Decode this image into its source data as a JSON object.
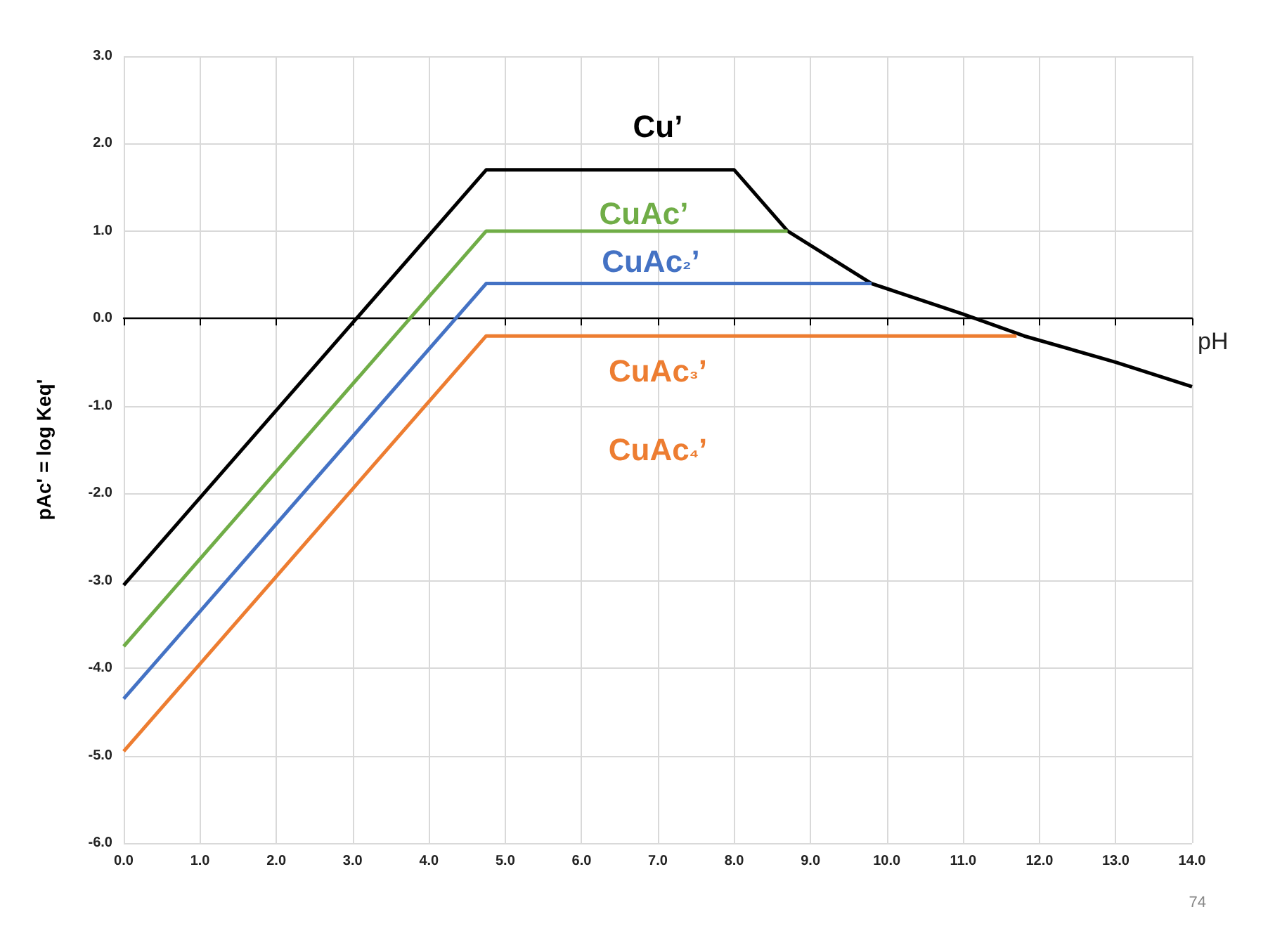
{
  "chart_data": {
    "type": "line",
    "xlabel": "pH",
    "ylabel": "pAc' = log Keq'",
    "xlim": [
      0,
      14
    ],
    "xticks": [
      {
        "value": 0,
        "label": "0.0"
      },
      {
        "value": 1,
        "label": "1.0"
      },
      {
        "value": 2,
        "label": "2.0"
      },
      {
        "value": 3,
        "label": "3.0"
      },
      {
        "value": 4,
        "label": "4.0"
      },
      {
        "value": 5,
        "label": "5.0"
      },
      {
        "value": 6,
        "label": "6.0"
      },
      {
        "value": 7,
        "label": "7.0"
      },
      {
        "value": 8,
        "label": "8.0"
      },
      {
        "value": 9,
        "label": "9.0"
      },
      {
        "value": 10,
        "label": "10.0"
      },
      {
        "value": 11,
        "label": "11.0"
      },
      {
        "value": 12,
        "label": "12.0"
      },
      {
        "value": 13,
        "label": "13.0"
      },
      {
        "value": 14,
        "label": "14.0"
      }
    ],
    "ylim": [
      -6,
      3
    ],
    "yticks": [
      {
        "value": -6,
        "label": "-6.0"
      },
      {
        "value": -5,
        "label": "-5.0"
      },
      {
        "value": -4,
        "label": "-4.0"
      },
      {
        "value": -3,
        "label": "-3.0"
      },
      {
        "value": -2,
        "label": "-2.0"
      },
      {
        "value": -1,
        "label": "-1.0"
      },
      {
        "value": 0,
        "label": "0.0"
      },
      {
        "value": 1,
        "label": "1.0"
      },
      {
        "value": 2,
        "label": "2.0"
      },
      {
        "value": 3,
        "label": "3.0"
      }
    ],
    "grid": true,
    "marker": "none",
    "line_style": "solid",
    "series": [
      {
        "color": "#000000",
        "x": [
          0,
          4.75,
          8.0,
          8.7,
          9.8,
          11.0,
          11.8,
          13.0,
          14.0
        ],
        "values": [
          -3.05,
          1.7,
          1.7,
          1.0,
          0.4,
          0.05,
          -0.2,
          -0.5,
          -0.78
        ]
      },
      {
        "color": "#70ad47",
        "x": [
          0,
          4.75,
          8.7
        ],
        "values": [
          -3.75,
          1.0,
          1.0
        ]
      },
      {
        "color": "#4472c4",
        "x": [
          0,
          4.75,
          9.8
        ],
        "values": [
          -4.35,
          0.4,
          0.4
        ]
      },
      {
        "color": "#ed7d31",
        "x": [
          0,
          4.75,
          11.7
        ],
        "values": [
          -4.95,
          -0.2,
          -0.2
        ]
      }
    ],
    "annotations": [
      "Cu’",
      "CuAc’",
      "CuAc₂’",
      "CuAc₃’",
      "CuAc₄’",
      "74"
    ]
  }
}
